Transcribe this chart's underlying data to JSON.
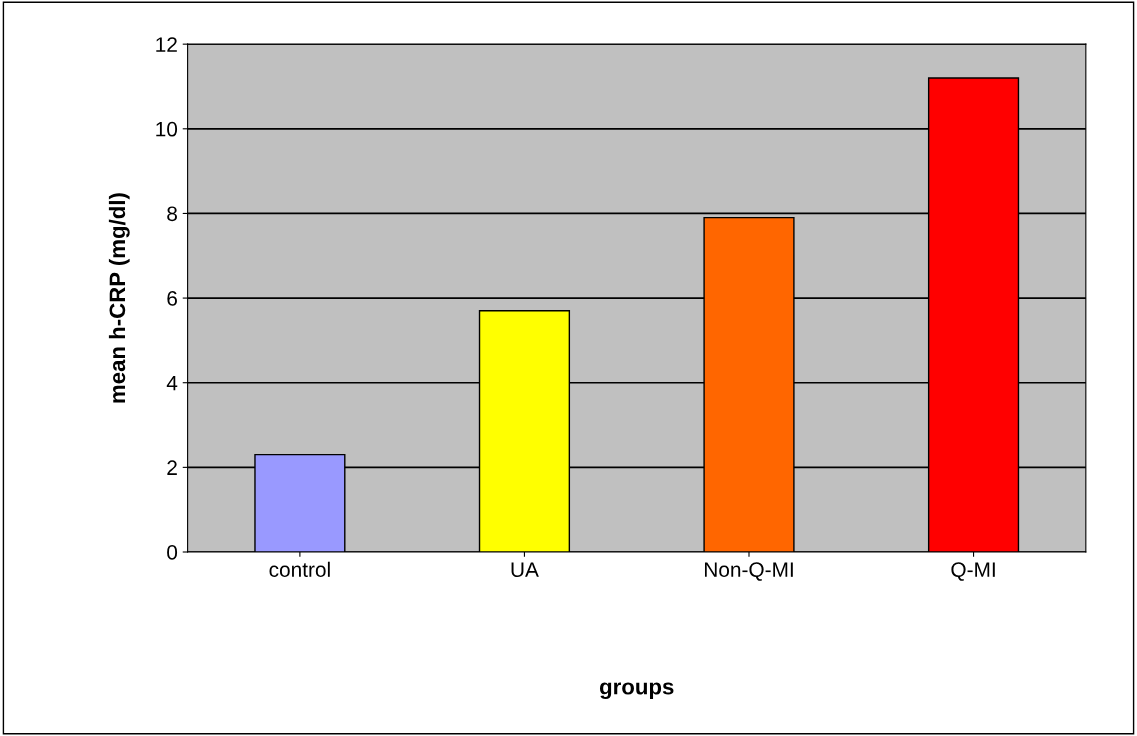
{
  "chart_data": {
    "type": "bar",
    "xlabel": "groups",
    "ylabel": "mean h-CRP (mg/dl)",
    "categories": [
      "control",
      "UA",
      "Non-Q-MI",
      "Q-MI"
    ],
    "values": [
      2.3,
      5.7,
      7.9,
      11.2
    ],
    "colors": [
      "#9999ff",
      "#ffff00",
      "#ff6600",
      "#ff0000"
    ],
    "ylim": [
      0,
      12
    ],
    "yticks": [
      0,
      2,
      4,
      6,
      8,
      10,
      12
    ],
    "grid": "y"
  }
}
